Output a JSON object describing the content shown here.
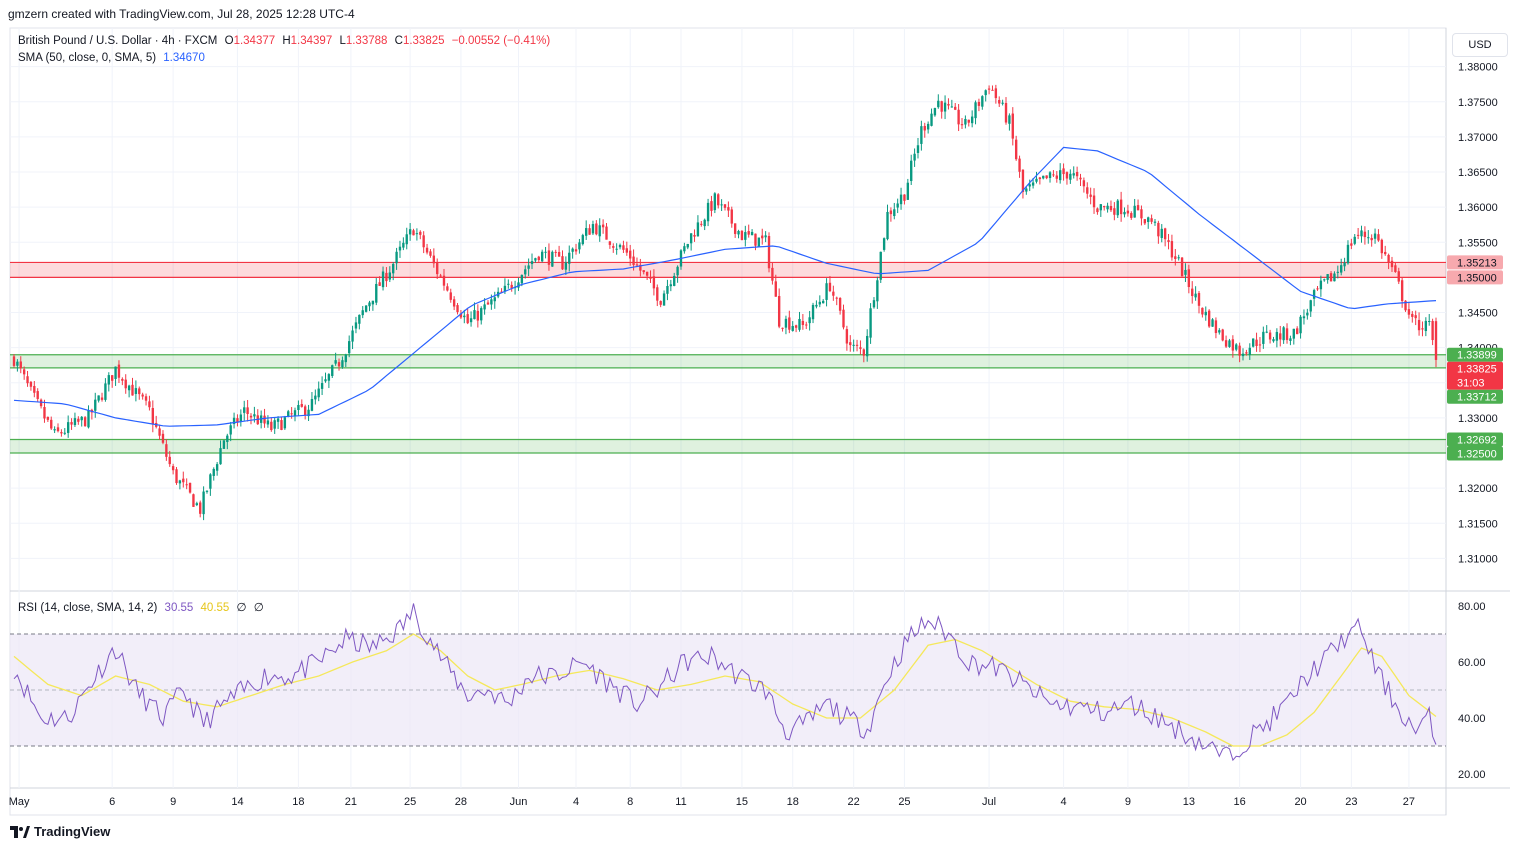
{
  "header": {
    "text": "gmzern created with TradingView.com, Jul 28, 2025 12:28 UTC-4"
  },
  "legend": {
    "symbol": "British Pound / U.S. Dollar · 4h · FXCM",
    "open_label": "O",
    "open": "1.34377",
    "high_label": "H",
    "high": "1.34397",
    "low_label": "L",
    "low": "1.33788",
    "close_label": "C",
    "close": "1.33825",
    "change": "−0.00552 (−0.41%)",
    "sma_label": "SMA (50, close, 0, SMA, 5)",
    "sma_value": "1.34670",
    "rsi_label": "RSI (14, close, SMA, 14, 2)",
    "rsi_value": "30.55",
    "rsi_sma_value": "40.55",
    "rsi_extra1": "∅",
    "rsi_extra2": "∅"
  },
  "currency_button": "USD",
  "footer": {
    "logo_text": "TradingView"
  },
  "colors": {
    "up": "#089981",
    "down": "#f23645",
    "sma": "#2962ff",
    "rsi": "#7e57c2",
    "rsi_sma": "#f5e85a",
    "resistance": "#f23645",
    "support": "#4caf50",
    "rsi_band": "#ede7f6"
  },
  "chart_data": {
    "type": "candlestick",
    "ylim": [
      1.3055,
      1.3855
    ],
    "yticks": [
      "1.38000",
      "1.37500",
      "1.37000",
      "1.36500",
      "1.36000",
      "1.35500",
      "1.35000",
      "1.34500",
      "1.34000",
      "1.33500",
      "1.33000",
      "1.32500",
      "1.32000",
      "1.31500",
      "1.31000"
    ],
    "xticks": [
      {
        "label": "May",
        "t": 1.5
      },
      {
        "label": "6",
        "t": 29
      },
      {
        "label": "9",
        "t": 47
      },
      {
        "label": "14",
        "t": 66
      },
      {
        "label": "18",
        "t": 84
      },
      {
        "label": "21",
        "t": 99.5
      },
      {
        "label": "25",
        "t": 117
      },
      {
        "label": "28",
        "t": 132
      },
      {
        "label": "Jun",
        "t": 149
      },
      {
        "label": "4",
        "t": 166
      },
      {
        "label": "8",
        "t": 182
      },
      {
        "label": "11",
        "t": 197
      },
      {
        "label": "15",
        "t": 215
      },
      {
        "label": "18",
        "t": 230
      },
      {
        "label": "22",
        "t": 248
      },
      {
        "label": "25",
        "t": 263
      },
      {
        "label": "Jul",
        "t": 288
      },
      {
        "label": "4",
        "t": 310
      },
      {
        "label": "9",
        "t": 329
      },
      {
        "label": "13",
        "t": 347
      },
      {
        "label": "16",
        "t": 362
      },
      {
        "label": "20",
        "t": 380
      },
      {
        "label": "23",
        "t": 395
      },
      {
        "label": "27",
        "t": 412
      }
    ],
    "x_count": 421,
    "anchors": [
      [
        0,
        1.3385
      ],
      [
        5,
        1.3335
      ],
      [
        12,
        1.3275
      ],
      [
        22,
        1.33
      ],
      [
        30,
        1.337
      ],
      [
        40,
        1.331
      ],
      [
        47,
        1.322
      ],
      [
        55,
        1.317
      ],
      [
        62,
        1.327
      ],
      [
        68,
        1.331
      ],
      [
        76,
        1.3285
      ],
      [
        88,
        1.332
      ],
      [
        96,
        1.338
      ],
      [
        104,
        1.346
      ],
      [
        112,
        1.352
      ],
      [
        118,
        1.357
      ],
      [
        126,
        1.35
      ],
      [
        134,
        1.3435
      ],
      [
        145,
        1.348
      ],
      [
        155,
        1.3535
      ],
      [
        162,
        1.352
      ],
      [
        171,
        1.3575
      ],
      [
        182,
        1.353
      ],
      [
        191,
        1.347
      ],
      [
        200,
        1.356
      ],
      [
        207,
        1.361
      ],
      [
        215,
        1.356
      ],
      [
        222,
        1.355
      ],
      [
        226,
        1.344
      ],
      [
        233,
        1.343
      ],
      [
        241,
        1.349
      ],
      [
        247,
        1.34
      ],
      [
        251,
        1.3395
      ],
      [
        258,
        1.359
      ],
      [
        263,
        1.362
      ],
      [
        268,
        1.371
      ],
      [
        273,
        1.375
      ],
      [
        281,
        1.3715
      ],
      [
        288,
        1.3775
      ],
      [
        294,
        1.372
      ],
      [
        298,
        1.362
      ],
      [
        305,
        1.364
      ],
      [
        312,
        1.365
      ],
      [
        320,
        1.36
      ],
      [
        328,
        1.36
      ],
      [
        336,
        1.358
      ],
      [
        343,
        1.353
      ],
      [
        350,
        1.346
      ],
      [
        356,
        1.342
      ],
      [
        362,
        1.3395
      ],
      [
        369,
        1.3415
      ],
      [
        378,
        1.342
      ],
      [
        385,
        1.348
      ],
      [
        391,
        1.351
      ],
      [
        396,
        1.356
      ],
      [
        402,
        1.356
      ],
      [
        408,
        1.35
      ],
      [
        413,
        1.3435
      ],
      [
        418,
        1.343
      ],
      [
        420,
        1.33825
      ]
    ],
    "sma50_anchors": [
      [
        0,
        1.3325
      ],
      [
        15,
        1.332
      ],
      [
        30,
        1.33
      ],
      [
        45,
        1.3288
      ],
      [
        60,
        1.329
      ],
      [
        75,
        1.33
      ],
      [
        90,
        1.3305
      ],
      [
        105,
        1.334
      ],
      [
        120,
        1.34
      ],
      [
        135,
        1.346
      ],
      [
        150,
        1.349
      ],
      [
        165,
        1.3508
      ],
      [
        180,
        1.3512
      ],
      [
        195,
        1.3525
      ],
      [
        210,
        1.354
      ],
      [
        225,
        1.3545
      ],
      [
        240,
        1.352
      ],
      [
        255,
        1.3505
      ],
      [
        270,
        1.351
      ],
      [
        285,
        1.355
      ],
      [
        300,
        1.3635
      ],
      [
        310,
        1.3685
      ],
      [
        320,
        1.368
      ],
      [
        335,
        1.365
      ],
      [
        350,
        1.359
      ],
      [
        365,
        1.3535
      ],
      [
        380,
        1.348
      ],
      [
        395,
        1.3455
      ],
      [
        405,
        1.3462
      ],
      [
        420,
        1.3467
      ]
    ],
    "rsi": {
      "ylim": [
        15,
        85
      ],
      "yticks": [
        "80.00",
        "60.00",
        "40.00",
        "20.00"
      ],
      "upper": 70,
      "lower": 30,
      "anchors": [
        [
          0,
          58
        ],
        [
          8,
          40
        ],
        [
          16,
          40
        ],
        [
          24,
          55
        ],
        [
          30,
          65
        ],
        [
          36,
          50
        ],
        [
          44,
          40
        ],
        [
          50,
          50
        ],
        [
          56,
          38
        ],
        [
          62,
          45
        ],
        [
          68,
          50
        ],
        [
          74,
          55
        ],
        [
          82,
          55
        ],
        [
          90,
          60
        ],
        [
          98,
          68
        ],
        [
          106,
          65
        ],
        [
          114,
          72
        ],
        [
          118,
          78
        ],
        [
          122,
          70
        ],
        [
          128,
          58
        ],
        [
          134,
          48
        ],
        [
          140,
          50
        ],
        [
          146,
          45
        ],
        [
          152,
          55
        ],
        [
          160,
          55
        ],
        [
          168,
          60
        ],
        [
          176,
          52
        ],
        [
          184,
          45
        ],
        [
          190,
          50
        ],
        [
          198,
          60
        ],
        [
          206,
          62
        ],
        [
          214,
          55
        ],
        [
          222,
          50
        ],
        [
          228,
          35
        ],
        [
          234,
          38
        ],
        [
          240,
          45
        ],
        [
          246,
          40
        ],
        [
          252,
          36
        ],
        [
          258,
          55
        ],
        [
          264,
          68
        ],
        [
          270,
          75
        ],
        [
          276,
          70
        ],
        [
          282,
          60
        ],
        [
          290,
          58
        ],
        [
          298,
          52
        ],
        [
          306,
          45
        ],
        [
          314,
          44
        ],
        [
          322,
          42
        ],
        [
          330,
          45
        ],
        [
          338,
          40
        ],
        [
          345,
          35
        ],
        [
          352,
          30
        ],
        [
          358,
          26
        ],
        [
          364,
          32
        ],
        [
          370,
          38
        ],
        [
          376,
          45
        ],
        [
          382,
          55
        ],
        [
          388,
          62
        ],
        [
          394,
          70
        ],
        [
          398,
          72
        ],
        [
          402,
          58
        ],
        [
          408,
          45
        ],
        [
          414,
          35
        ],
        [
          418,
          40
        ],
        [
          420,
          30.55
        ]
      ],
      "sma_anchors": [
        [
          0,
          62
        ],
        [
          10,
          52
        ],
        [
          20,
          48
        ],
        [
          30,
          55
        ],
        [
          40,
          52
        ],
        [
          50,
          46
        ],
        [
          60,
          44
        ],
        [
          70,
          48
        ],
        [
          80,
          52
        ],
        [
          90,
          55
        ],
        [
          100,
          60
        ],
        [
          110,
          64
        ],
        [
          118,
          70
        ],
        [
          126,
          64
        ],
        [
          134,
          55
        ],
        [
          142,
          50
        ],
        [
          150,
          52
        ],
        [
          160,
          55
        ],
        [
          170,
          57
        ],
        [
          180,
          54
        ],
        [
          190,
          50
        ],
        [
          200,
          52
        ],
        [
          210,
          55
        ],
        [
          220,
          53
        ],
        [
          230,
          45
        ],
        [
          240,
          40
        ],
        [
          250,
          40
        ],
        [
          260,
          50
        ],
        [
          270,
          66
        ],
        [
          278,
          68
        ],
        [
          286,
          64
        ],
        [
          294,
          58
        ],
        [
          302,
          52
        ],
        [
          312,
          46
        ],
        [
          322,
          44
        ],
        [
          332,
          43
        ],
        [
          342,
          40
        ],
        [
          352,
          35
        ],
        [
          360,
          30
        ],
        [
          368,
          30
        ],
        [
          376,
          34
        ],
        [
          384,
          42
        ],
        [
          392,
          55
        ],
        [
          398,
          65
        ],
        [
          404,
          62
        ],
        [
          412,
          48
        ],
        [
          420,
          40.55
        ]
      ]
    },
    "zones": [
      {
        "type": "resistance",
        "top": 1.35213,
        "bottom": 1.35
      },
      {
        "type": "support",
        "top": 1.33899,
        "bottom": 1.33712
      },
      {
        "type": "support",
        "top": 1.32692,
        "bottom": 1.325
      }
    ],
    "price_labels": [
      {
        "value": "1.35213",
        "price": 1.35213,
        "kind": "red-soft"
      },
      {
        "value": "1.35000",
        "price": 1.35,
        "kind": "red-soft"
      },
      {
        "value": "1.33899",
        "price": 1.33899,
        "kind": "green"
      },
      {
        "value": "1.33825",
        "price": 1.33825,
        "kind": "red",
        "countdown": "31:03"
      },
      {
        "value": "1.33712",
        "price": 1.33712,
        "kind": "green"
      },
      {
        "value": "1.32692",
        "price": 1.32692,
        "kind": "green"
      },
      {
        "value": "1.32500",
        "price": 1.325,
        "kind": "green"
      }
    ]
  }
}
